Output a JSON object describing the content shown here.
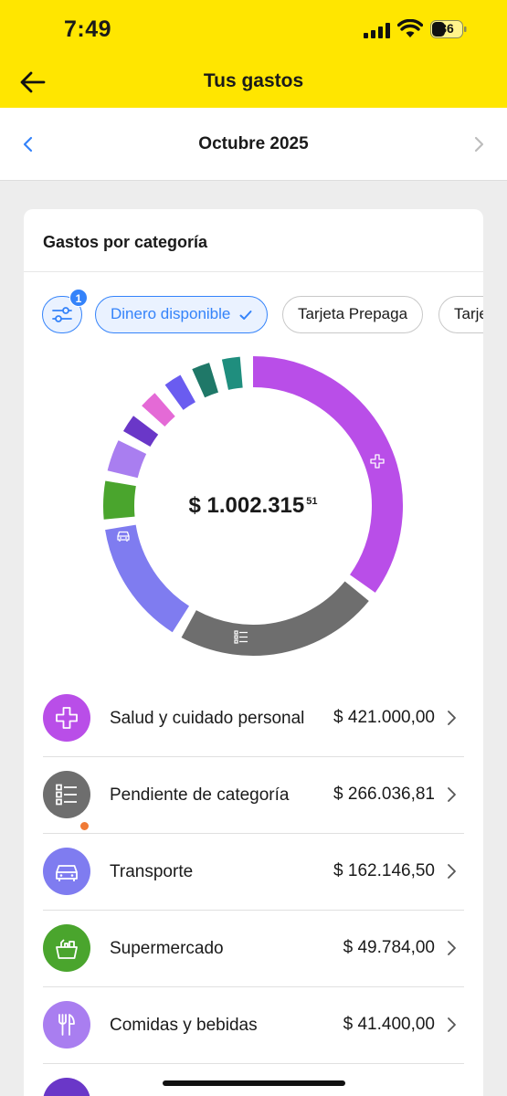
{
  "status": {
    "time": "7:49",
    "battery": "36"
  },
  "header": {
    "title": "Tus gastos"
  },
  "month": {
    "label": "Octubre 2025"
  },
  "card": {
    "title": "Gastos por categoría",
    "filter_badge": "1",
    "chips": [
      {
        "label": "Dinero disponible",
        "selected": true
      },
      {
        "label": "Tarjeta Prepaga",
        "selected": false
      },
      {
        "label": "Tarjeta",
        "selected": false
      }
    ]
  },
  "total": {
    "integer": "$ 1.002.315",
    "cents": "51"
  },
  "categories": [
    {
      "name": "Salud y cuidado personal",
      "amount": "$ 421.000,00",
      "value": 421000.0,
      "color": "#b94ee8",
      "icon": "plus-icon"
    },
    {
      "name": "Pendiente de categoría",
      "amount": "$ 266.036,81",
      "value": 266036.81,
      "color": "#6e6e6e",
      "icon": "list-icon",
      "badge": true
    },
    {
      "name": "Transporte",
      "amount": "$ 162.146,50",
      "value": 162146.5,
      "color": "#7f7cf0",
      "icon": "car-icon"
    },
    {
      "name": "Supermercado",
      "amount": "$ 49.784,00",
      "value": 49784.0,
      "color": "#4aa52d",
      "icon": "basket-icon"
    },
    {
      "name": "Comidas y bebidas",
      "amount": "$ 41.400,00",
      "value": 41400.0,
      "color": "#a97ef0",
      "icon": "cutlery-icon"
    },
    {
      "name": "",
      "amount": "",
      "value": 0,
      "color": "#6a37c8",
      "icon": "category-icon"
    }
  ],
  "small_segments": [
    {
      "color": "#6a37c8"
    },
    {
      "color": "#e46ad6"
    },
    {
      "color": "#6a5cf0"
    },
    {
      "color": "#1f7868"
    },
    {
      "color": "#1f8e7e"
    }
  ]
}
